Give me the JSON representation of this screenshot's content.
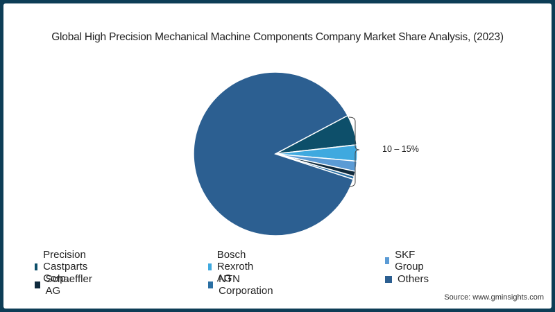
{
  "title": "Global High Precision Mechanical Machine Components Company Market Share Analysis, (2023)",
  "annotation": "10 – 15%",
  "source": "Source: www.gminsights.com",
  "legend": [
    {
      "label": "Precision Castparts Corp.",
      "color": "#0d4f6a"
    },
    {
      "label": "Bosch Rexroth AG",
      "color": "#3fa9df"
    },
    {
      "label": "SKF Group",
      "color": "#5b9bd5"
    },
    {
      "label": "Schaeffler AG",
      "color": "#0f2a3d"
    },
    {
      "label": "NTN Corporation",
      "color": "#2a6fa3"
    },
    {
      "label": "Others",
      "color": "#2c5f91"
    }
  ],
  "chart_data": {
    "type": "pie",
    "title": "Global High Precision Mechanical Machine Components Company Market Share Analysis, (2023)",
    "categories": [
      "Precision Castparts Corp.",
      "Bosch Rexroth AG",
      "SKF Group",
      "Schaeffler AG",
      "NTN Corporation",
      "Others"
    ],
    "values": [
      6.0,
      3.2,
      2.0,
      1.0,
      0.6,
      87.2
    ],
    "annotations": [
      {
        "text": "10 – 15%",
        "applies_to": [
          "Precision Castparts Corp.",
          "Bosch Rexroth AG",
          "SKF Group",
          "Schaeffler AG",
          "NTN Corporation"
        ]
      }
    ],
    "legend_position": "bottom"
  }
}
